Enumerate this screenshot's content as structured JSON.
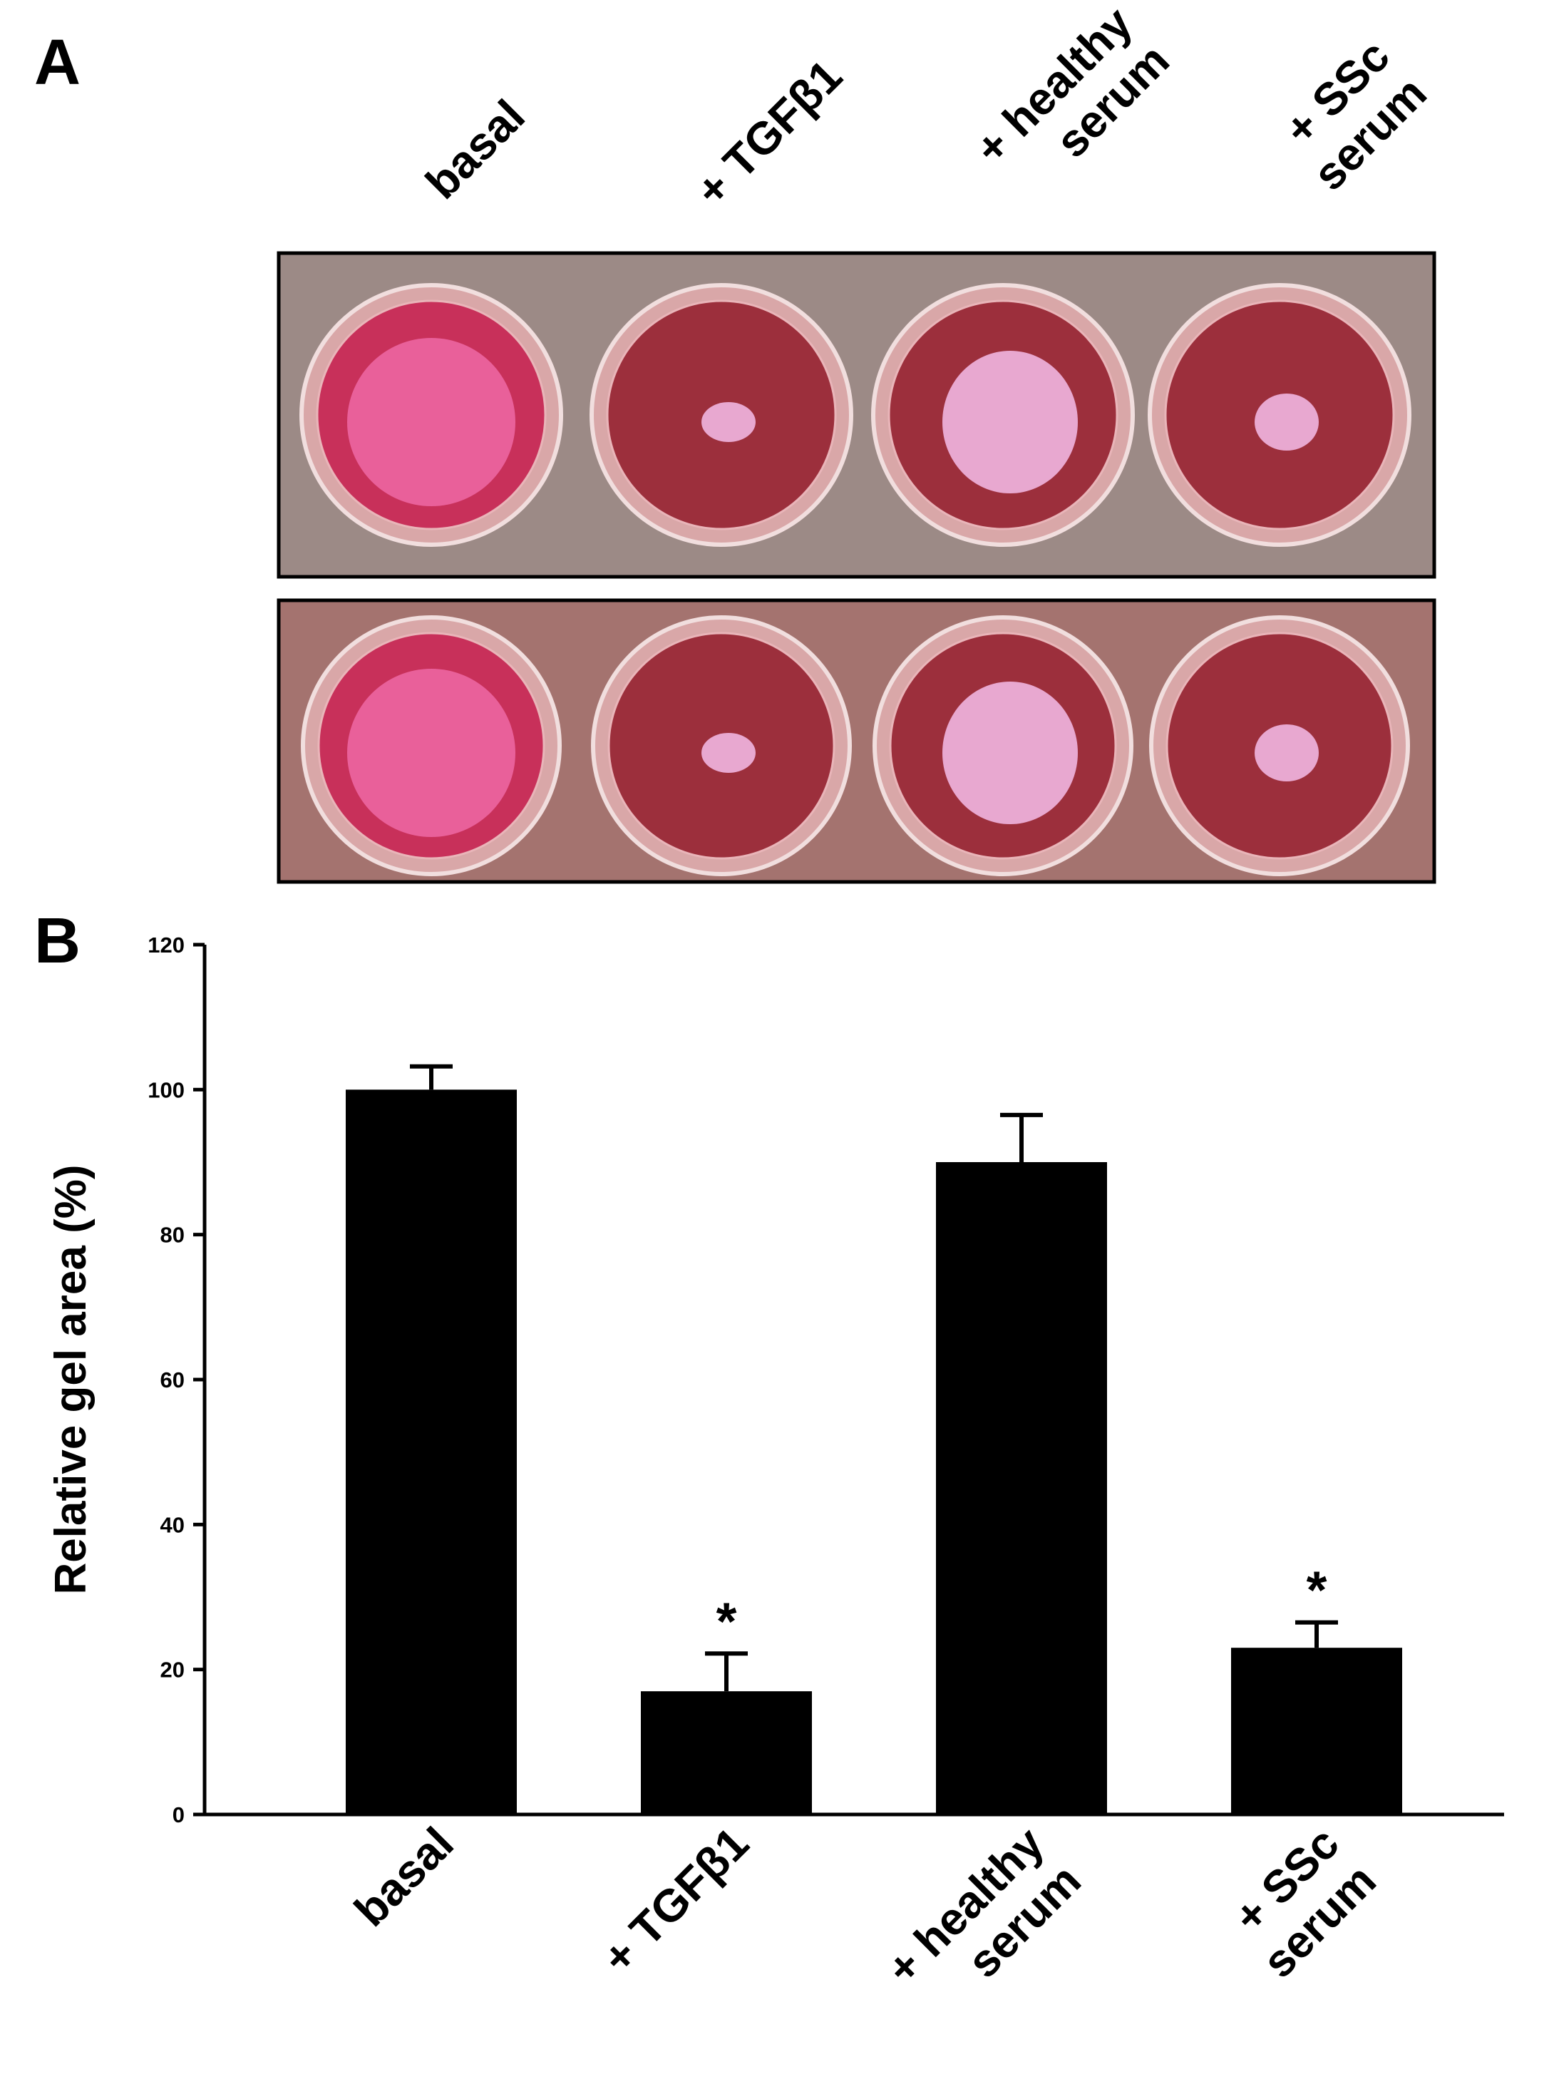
{
  "panel_a": {
    "label": "A",
    "column_labels": [
      "basal",
      "+ TGFβ1",
      "+ healthy\nserum",
      "+ SSc\nserum"
    ]
  },
  "chart_data": {
    "type": "bar",
    "panel_label": "B",
    "y_label": "Relative gel area (%)",
    "categories": [
      "basal",
      "+ TGFβ1",
      "+ healthy\nserum",
      "+ SSc\nserum"
    ],
    "values": [
      100,
      17,
      90,
      23
    ],
    "errors": [
      3.2,
      5.2,
      6.5,
      3.5
    ],
    "significance": [
      null,
      "*",
      null,
      "*"
    ],
    "color": "#000000",
    "ylim": [
      0,
      120
    ],
    "yticks": [
      0,
      20,
      40,
      60,
      80,
      100,
      120
    ]
  }
}
